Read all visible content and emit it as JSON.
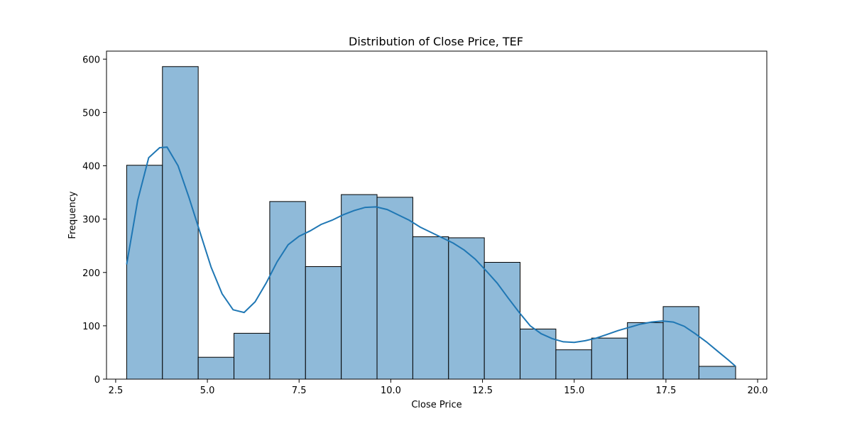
{
  "chart_data": {
    "type": "bar",
    "title": "Distribution of Close Price, TEF",
    "xlabel": "Close Price",
    "ylabel": "Frequency",
    "xlim": [
      2.25,
      20.25
    ],
    "ylim": [
      0,
      615
    ],
    "x_ticks": [
      2.5,
      5.0,
      7.5,
      10.0,
      12.5,
      15.0,
      17.5,
      20.0
    ],
    "x_tick_labels": [
      "2.5",
      "5.0",
      "7.5",
      "10.0",
      "12.5",
      "15.0",
      "17.5",
      "20.0"
    ],
    "y_ticks": [
      0,
      100,
      200,
      300,
      400,
      500,
      600
    ],
    "y_tick_labels": [
      "0",
      "100",
      "200",
      "300",
      "400",
      "500",
      "600"
    ],
    "bin_edges": [
      2.8,
      3.775,
      4.75,
      5.725,
      6.7,
      7.675,
      8.65,
      9.625,
      10.6,
      11.575,
      12.55,
      13.525,
      14.5,
      15.475,
      16.45,
      17.425,
      18.4,
      19.4
    ],
    "values": [
      401,
      586,
      41,
      86,
      333,
      211,
      346,
      341,
      267,
      265,
      219,
      94,
      55,
      77,
      106,
      136,
      24
    ],
    "kde": {
      "x": [
        2.8,
        3.1,
        3.4,
        3.7,
        3.9,
        4.2,
        4.5,
        4.8,
        5.1,
        5.4,
        5.7,
        6.0,
        6.3,
        6.6,
        6.9,
        7.2,
        7.5,
        7.8,
        8.1,
        8.4,
        8.7,
        9.0,
        9.3,
        9.6,
        9.9,
        10.2,
        10.5,
        10.8,
        11.1,
        11.4,
        11.7,
        12.0,
        12.3,
        12.6,
        12.9,
        13.2,
        13.5,
        13.8,
        14.1,
        14.4,
        14.7,
        15.0,
        15.3,
        15.6,
        15.9,
        16.2,
        16.5,
        16.8,
        17.1,
        17.4,
        17.7,
        18.0,
        18.3,
        18.6,
        18.9,
        19.2,
        19.4
      ],
      "y": [
        215,
        335,
        415,
        434,
        435,
        400,
        340,
        275,
        210,
        160,
        130,
        125,
        145,
        180,
        220,
        252,
        268,
        278,
        290,
        298,
        308,
        316,
        322,
        323,
        318,
        308,
        298,
        285,
        275,
        265,
        255,
        242,
        225,
        203,
        180,
        152,
        125,
        100,
        85,
        76,
        70,
        69,
        72,
        77,
        84,
        91,
        97,
        103,
        107,
        109,
        107,
        99,
        85,
        70,
        53,
        36,
        24
      ]
    },
    "bar_color": "#8fbad9",
    "bar_edge_color": "#000000",
    "kde_color": "#1f77b4",
    "grid": false,
    "legend": "none"
  }
}
